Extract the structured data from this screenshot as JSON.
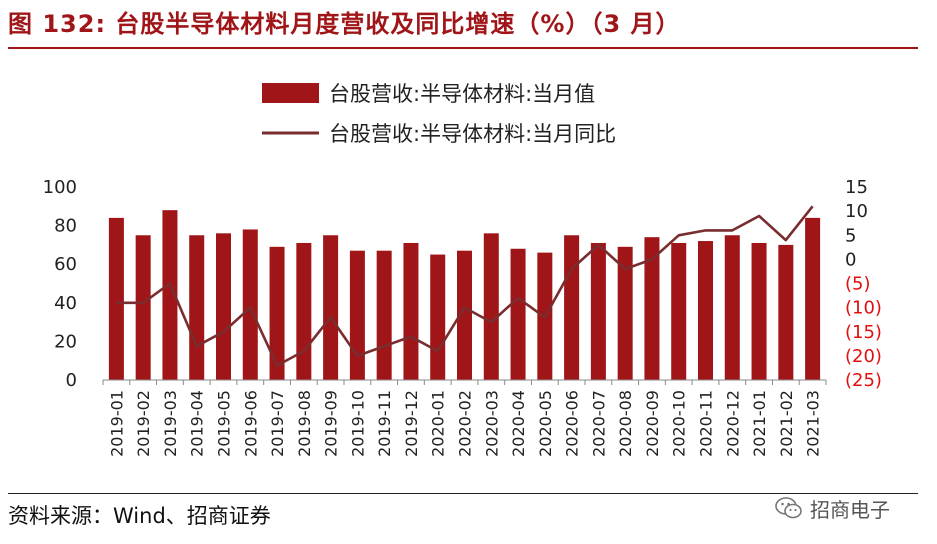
{
  "figure_title": "图 132:  台股半导体材料月度营收及同比增速（%）（3 月）",
  "source": "资料来源：Wind、招商证券",
  "watermark": "招商电子",
  "colors": {
    "bar": "#a01518",
    "line": "#7a2d2f",
    "title": "#a01518",
    "negative_tick": "#e01010",
    "axis_tick": "#222222"
  },
  "chart_data": {
    "type": "bar+line",
    "categories": [
      "2019-01",
      "2019-02",
      "2019-03",
      "2019-04",
      "2019-05",
      "2019-06",
      "2019-07",
      "2019-08",
      "2019-09",
      "2019-10",
      "2019-11",
      "2019-12",
      "2020-01",
      "2020-02",
      "2020-03",
      "2020-04",
      "2020-05",
      "2020-06",
      "2020-07",
      "2020-08",
      "2020-09",
      "2020-10",
      "2020-11",
      "2020-12",
      "2021-01",
      "2021-02",
      "2021-03"
    ],
    "series": [
      {
        "name": "台股营收:半导体材料:当月值",
        "type": "bar",
        "axis": "left",
        "values": [
          84,
          75,
          88,
          75,
          76,
          78,
          69,
          71,
          75,
          67,
          67,
          71,
          65,
          67,
          76,
          68,
          66,
          75,
          71,
          69,
          74,
          71,
          72,
          75,
          71,
          70,
          84
        ]
      },
      {
        "name": "台股营收:半导体材料:当月同比",
        "type": "line",
        "axis": "right",
        "values": [
          -9,
          -9,
          -5,
          -18,
          -15,
          -10,
          -22,
          -19,
          -12,
          -20,
          -18,
          -16,
          -19,
          -10,
          -13,
          -8,
          -12,
          -2,
          3,
          -2,
          0,
          5,
          6,
          6,
          9,
          4,
          11
        ]
      }
    ],
    "y_left": {
      "range": [
        0,
        100
      ],
      "ticks": [
        "0",
        "20",
        "40",
        "60",
        "80",
        "100"
      ]
    },
    "y_right": {
      "range": [
        -25,
        15
      ],
      "ticks": [
        "15",
        "10",
        "5",
        "0",
        "(5)",
        "(10)",
        "(15)",
        "(20)",
        "(25)"
      ]
    },
    "legend_position": "top-center",
    "grid": false
  }
}
